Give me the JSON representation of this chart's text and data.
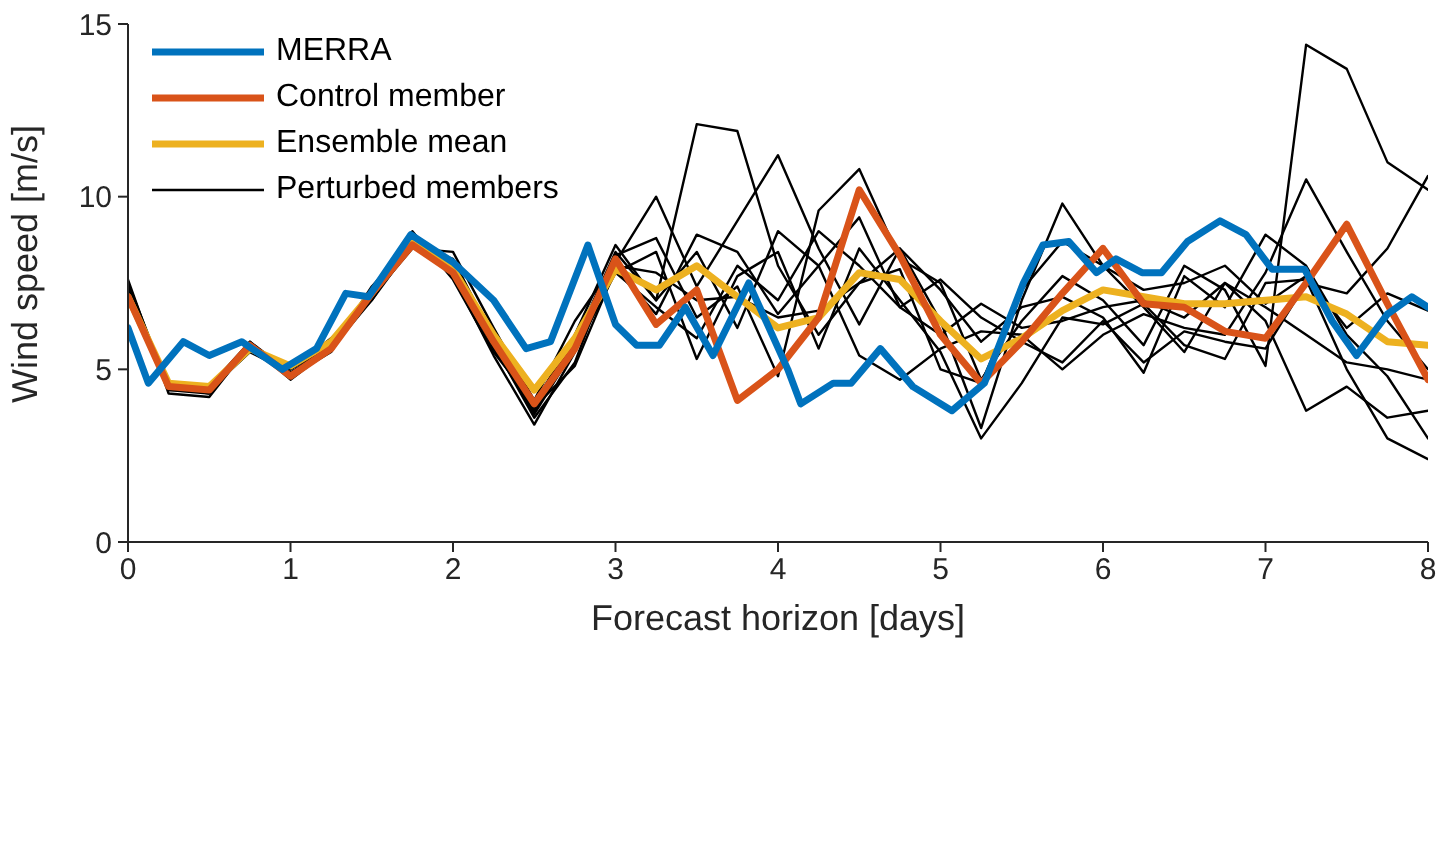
{
  "chart_data": {
    "type": "line",
    "xlabel": "Forecast horizon [days]",
    "ylabel": "Wind speed [m/s]",
    "xlim": [
      0,
      8
    ],
    "xticks": [
      0,
      1,
      2,
      3,
      4,
      5,
      6,
      7,
      8
    ],
    "ylim": [
      0,
      15
    ],
    "yticks": [
      0,
      5,
      10,
      15
    ],
    "legend": "top left",
    "x": [
      0,
      0.25,
      0.5,
      0.75,
      1,
      1.25,
      1.5,
      1.75,
      2,
      2.25,
      2.5,
      2.75,
      3,
      3.25,
      3.5,
      3.75,
      4,
      4.25,
      4.5,
      4.75,
      5,
      5.25,
      5.5,
      5.75,
      6,
      6.25,
      6.5,
      6.75,
      7,
      7.25,
      7.5,
      7.75,
      8
    ],
    "series": [
      {
        "name": "Perturbed members",
        "color": "#000000",
        "values": [
          7.5,
          4.4,
          4.3,
          5.8,
          4.9,
          5.7,
          7.3,
          9.0,
          7.6,
          5.5,
          4.0,
          6.0,
          8.6,
          7.0,
          12.1,
          11.9,
          8.0,
          6.0,
          7.5,
          8.5,
          6.4,
          3.3,
          7.0,
          9.8,
          8.0,
          6.8,
          5.5,
          7.5,
          6.8,
          6.0,
          5.2,
          5.0,
          4.7
        ]
      },
      {
        "color": "#000000",
        "values": [
          7.6,
          4.3,
          4.2,
          5.7,
          4.7,
          5.6,
          7.0,
          8.8,
          8.0,
          5.7,
          3.6,
          5.2,
          8.3,
          8.8,
          6.5,
          7.4,
          4.8,
          9.6,
          10.8,
          8.2,
          7.5,
          4.7,
          6.4,
          7.7,
          7.0,
          5.7,
          8.0,
          7.3,
          5.1,
          14.4,
          13.7,
          11.0,
          10.2
        ]
      },
      {
        "color": "#000000",
        "values": [
          7.2,
          4.6,
          4.5,
          5.6,
          5.0,
          5.9,
          7.1,
          8.5,
          8.4,
          6.2,
          4.1,
          6.4,
          8.1,
          10.0,
          7.4,
          9.3,
          11.2,
          8.5,
          6.3,
          8.5,
          7.3,
          5.8,
          6.8,
          7.1,
          6.5,
          4.9,
          7.7,
          6.8,
          8.9,
          8.0,
          6.0,
          4.8,
          3.0
        ]
      },
      {
        "color": "#000000",
        "values": [
          7.0,
          4.4,
          4.4,
          5.5,
          4.9,
          5.6,
          7.4,
          8.7,
          7.7,
          5.4,
          3.4,
          5.5,
          7.8,
          8.4,
          5.3,
          7.7,
          8.4,
          5.6,
          8.5,
          7.0,
          5.5,
          3.0,
          4.6,
          6.5,
          6.3,
          6.9,
          5.7,
          5.3,
          7.5,
          7.6,
          5.0,
          3.0,
          2.4
        ]
      },
      {
        "color": "#000000",
        "values": [
          7.3,
          4.5,
          4.3,
          5.6,
          5.0,
          5.7,
          7.2,
          8.9,
          7.8,
          5.6,
          3.8,
          5.8,
          8.4,
          7.0,
          8.4,
          6.2,
          9.0,
          8.0,
          5.4,
          4.7,
          5.6,
          6.1,
          6.0,
          5.0,
          6.0,
          6.6,
          6.2,
          6.0,
          7.8,
          10.5,
          8.4,
          6.4,
          5.0
        ]
      },
      {
        "color": "#000000",
        "values": [
          7.4,
          4.5,
          4.4,
          5.7,
          4.8,
          5.8,
          7.0,
          8.6,
          8.2,
          5.9,
          3.9,
          5.1,
          7.9,
          6.6,
          8.9,
          8.4,
          6.6,
          8.0,
          9.4,
          6.8,
          6.0,
          6.9,
          6.2,
          6.4,
          6.8,
          7.0,
          6.5,
          7.5,
          6.4,
          3.8,
          4.5,
          3.6,
          3.8
        ]
      },
      {
        "color": "#000000",
        "values": [
          7.2,
          4.6,
          4.5,
          5.8,
          4.8,
          5.5,
          7.3,
          8.9,
          8.0,
          5.8,
          3.7,
          5.6,
          8.0,
          7.8,
          7.0,
          7.1,
          6.5,
          6.7,
          7.5,
          7.9,
          5.0,
          4.6,
          7.3,
          8.7,
          8.0,
          7.3,
          7.5,
          8.0,
          6.9,
          7.7,
          6.2,
          7.2,
          6.7
        ]
      },
      {
        "color": "#000000",
        "values": [
          7.5,
          4.5,
          4.5,
          5.7,
          5.0,
          5.8,
          7.2,
          8.7,
          7.9,
          5.8,
          3.8,
          5.9,
          7.8,
          6.8,
          5.9,
          8.0,
          7.0,
          9.0,
          8.0,
          6.8,
          7.6,
          6.5,
          5.8,
          5.2,
          6.4,
          5.2,
          6.1,
          5.8,
          5.6,
          7.5,
          7.2,
          8.5,
          10.6
        ]
      },
      {
        "name": "Ensemble mean",
        "color": "#edb120",
        "values": [
          7.1,
          4.6,
          4.5,
          5.6,
          5.1,
          5.8,
          7.2,
          8.7,
          7.9,
          6.0,
          4.4,
          5.9,
          7.9,
          7.3,
          8.0,
          7.1,
          6.2,
          6.5,
          7.8,
          7.6,
          6.4,
          5.3,
          5.9,
          6.7,
          7.3,
          7.1,
          6.9,
          6.9,
          7.0,
          7.1,
          6.6,
          5.8,
          5.7
        ]
      },
      {
        "name": "Control member",
        "color": "#d95319",
        "values": [
          7.1,
          4.5,
          4.4,
          5.7,
          4.8,
          5.6,
          7.2,
          8.6,
          7.8,
          5.8,
          4.0,
          5.6,
          8.2,
          6.3,
          7.3,
          4.1,
          5.0,
          6.5,
          10.2,
          8.3,
          6.0,
          4.6,
          5.8,
          7.2,
          8.5,
          6.9,
          6.8,
          6.1,
          5.9,
          7.5,
          9.2,
          6.9,
          4.7
        ]
      },
      {
        "name": "MERRA",
        "color": "#0072bd",
        "x": [
          0,
          0.125,
          0.34,
          0.5,
          0.7,
          0.95,
          1.16,
          1.34,
          1.48,
          1.74,
          2.0,
          2.25,
          2.45,
          2.6,
          2.83,
          3.0,
          3.13,
          3.27,
          3.43,
          3.6,
          3.82,
          4.06,
          4.14,
          4.34,
          4.45,
          4.63,
          4.83,
          5.07,
          5.27,
          5.51,
          5.63,
          5.79,
          5.96,
          6.08,
          6.24,
          6.36,
          6.52,
          6.72,
          6.88,
          7.04,
          7.24,
          7.41,
          7.56,
          7.75,
          7.9,
          8.0
        ],
        "values": [
          6.2,
          4.6,
          5.8,
          5.4,
          5.8,
          5.0,
          5.6,
          7.2,
          7.1,
          8.9,
          8.1,
          7.0,
          5.6,
          5.8,
          8.6,
          6.3,
          5.7,
          5.7,
          6.8,
          5.4,
          7.5,
          5.0,
          4.0,
          4.6,
          4.6,
          5.6,
          4.5,
          3.8,
          4.6,
          7.5,
          8.6,
          8.7,
          7.8,
          8.2,
          7.8,
          7.8,
          8.7,
          9.3,
          8.9,
          7.9,
          7.9,
          6.4,
          5.4,
          6.6,
          7.1,
          6.8
        ]
      }
    ]
  }
}
